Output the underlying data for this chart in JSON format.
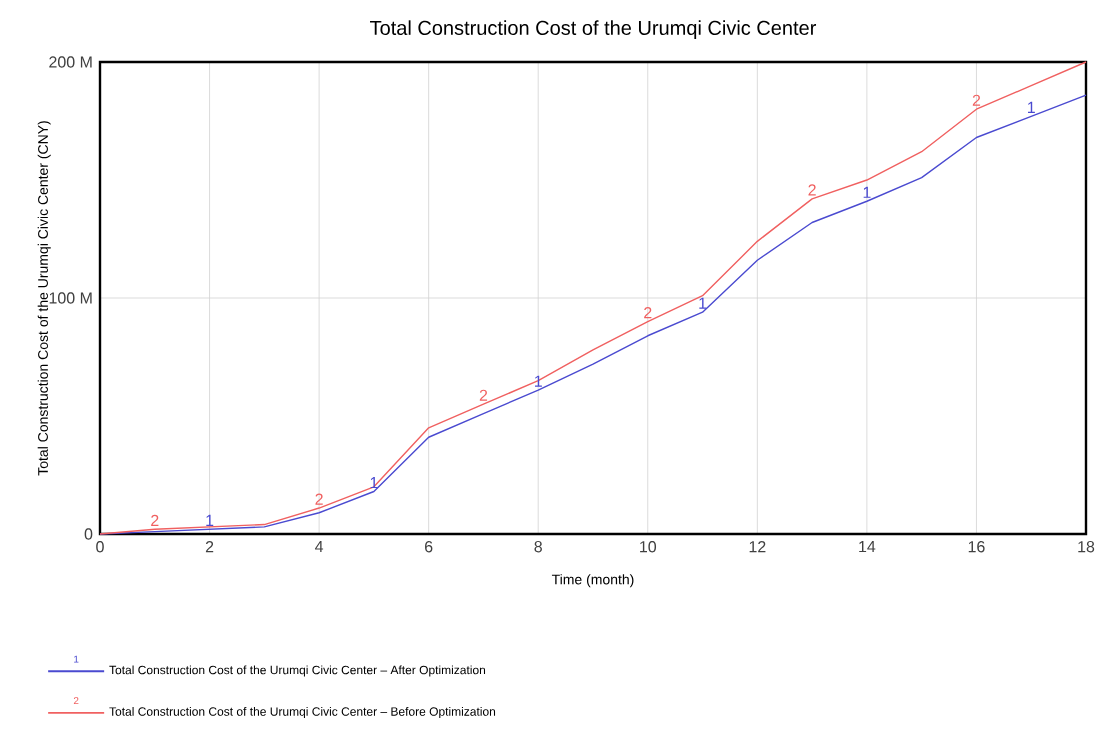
{
  "chart_data": {
    "type": "line",
    "title": "Total Construction Cost of the Urumqi Civic Center",
    "xlabel": "Time (month)",
    "ylabel": "Total Construction Cost of the Urumqi Civic Center (CNY)",
    "x": [
      0,
      1,
      2,
      3,
      4,
      5,
      6,
      7,
      8,
      9,
      10,
      11,
      12,
      13,
      14,
      15,
      16,
      17,
      18
    ],
    "series": [
      {
        "name": "Total Construction Cost of the Urumqi Civic Center – After Optimization",
        "color": "#4a4ad0",
        "values": [
          0,
          1,
          2,
          3,
          9,
          18,
          41,
          51,
          61,
          72,
          84,
          94,
          116,
          132,
          141,
          151,
          168,
          177,
          186
        ]
      },
      {
        "name": "Total Construction Cost of the Urumqi Civic Center – Before Optimization",
        "color": "#f06060",
        "values": [
          0,
          2,
          3,
          4,
          11,
          20,
          45,
          55,
          65,
          78,
          90,
          101,
          124,
          142,
          150,
          162,
          180,
          190,
          200
        ]
      }
    ],
    "annotations": [
      {
        "text": "1",
        "x": 2,
        "y": 2
      },
      {
        "text": "1",
        "x": 5,
        "y": 18
      },
      {
        "text": "1",
        "x": 8,
        "y": 61
      },
      {
        "text": "1",
        "x": 11,
        "y": 94
      },
      {
        "text": "1",
        "x": 14,
        "y": 141
      },
      {
        "text": "1",
        "x": 17,
        "y": 177
      },
      {
        "text": "2",
        "x": 1,
        "y": 2
      },
      {
        "text": "2",
        "x": 4,
        "y": 11
      },
      {
        "text": "2",
        "x": 7,
        "y": 55
      },
      {
        "text": "2",
        "x": 10,
        "y": 90
      },
      {
        "text": "2",
        "x": 13,
        "y": 142
      },
      {
        "text": "2",
        "x": 16,
        "y": 180
      }
    ],
    "xlim": [
      0,
      18
    ],
    "ylim": [
      0,
      200
    ],
    "xticks": [
      0,
      2,
      4,
      6,
      8,
      10,
      12,
      14,
      16,
      18
    ],
    "yticks": [
      0,
      {
        "value": 100,
        "label": "100 M"
      },
      {
        "value": 200,
        "label": "200 M"
      }
    ],
    "grid": true,
    "legend": "bottom left",
    "marker": "none",
    "line_style": "solid"
  }
}
